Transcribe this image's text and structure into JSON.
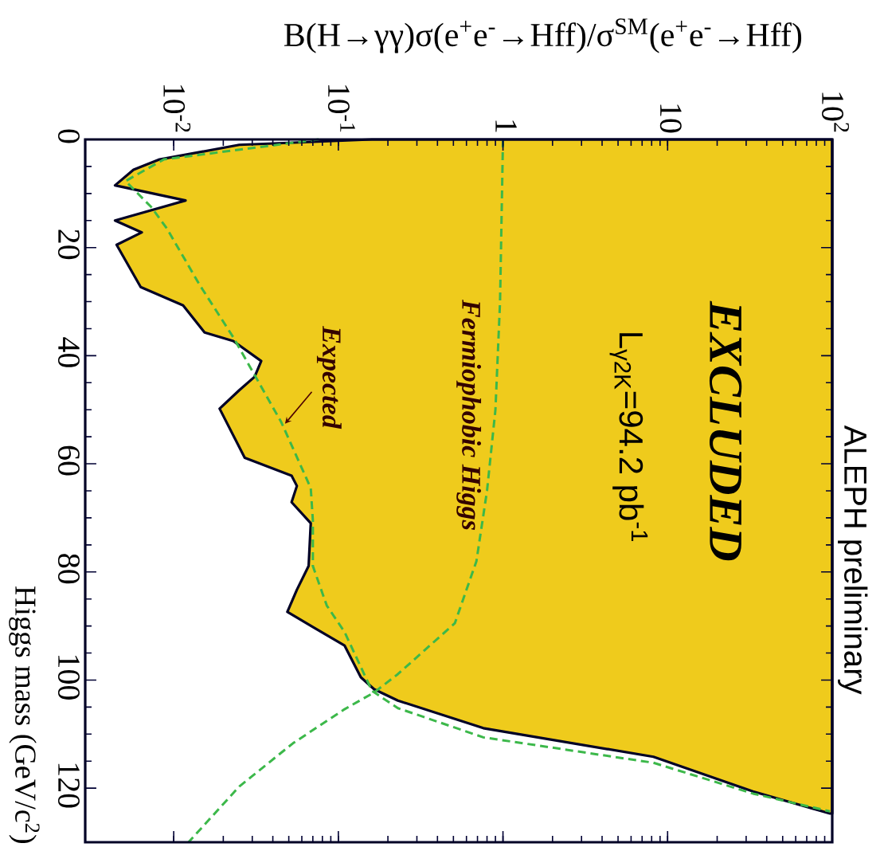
{
  "chart_data": {
    "type": "line",
    "xlabel": "B(H→γγ)σ(e$^{+}$e$^{-}$→Hff)/σ$^{SM}$(e$^{+}$e$^{-}$→Hff)",
    "ylabel": "Higgs mass (GeV/c$^{2}$)",
    "log": "x",
    "xlim": [
      0.0029,
      100
    ],
    "ylim": [
      130,
      0
    ],
    "yticks": [
      0,
      20,
      40,
      60,
      80,
      100,
      120
    ],
    "xticks": [
      {
        "value": 0.01,
        "label": "10$^{-2}$"
      },
      {
        "value": 0.1,
        "label": "10$^{-1}$"
      },
      1,
      10,
      {
        "value": 100,
        "label": "10$^{2}$"
      }
    ],
    "annotations": [
      "EXCLUDED",
      "L$_{γ2K}$=94.2 pb$^{-1}$",
      "ALEPH preliminary"
    ],
    "series": [
      {
        "type": "area",
        "color": "#efcb1c",
        "values": [
          0,
          1,
          3.7,
          5.6,
          8.5,
          11.3,
          15.0,
          17.2,
          19.5,
          27.3,
          30.7,
          35.7,
          37.3,
          41.0,
          43.9,
          46.4,
          49.8,
          58.9,
          62.2,
          64.1,
          67.1,
          71.0,
          78.9,
          83.3,
          87.4,
          90.2,
          93.6,
          99.5,
          101.7,
          103.8,
          108.9,
          114.2,
          120.6,
          124.7
        ],
        "x": [
          0.16,
          0.025,
          0.0082,
          0.0057,
          0.0044,
          0.0118,
          0.0044,
          0.0064,
          0.0045,
          0.0063,
          0.0114,
          0.0154,
          0.023,
          0.034,
          0.031,
          0.025,
          0.019,
          0.027,
          0.052,
          0.056,
          0.052,
          0.068,
          0.066,
          0.056,
          0.049,
          0.07,
          0.109,
          0.137,
          0.165,
          0.23,
          0.76,
          8.2,
          33,
          97
        ]
      },
      {
        "name": "Fermiophobic Higgs",
        "color": "#3cb84a",
        "line_style": "dashed",
        "values": [
          0,
          30,
          50,
          65,
          78,
          89.5,
          98.9,
          102.3,
          105.4,
          111.7,
          119.7,
          130
        ],
        "x": [
          1.0,
          0.96,
          0.9,
          0.8,
          0.69,
          0.51,
          0.23,
          0.165,
          0.109,
          0.053,
          0.025,
          0.0123
        ]
      },
      {
        "name": "Expected",
        "color": "#3cb84a",
        "line_style": "dashed",
        "values": [
          0,
          3.7,
          7.7,
          12.5,
          16.5,
          26.8,
          36.6,
          52.3,
          64.5,
          70.4,
          78.9,
          86.2,
          91.1,
          102.0,
          105.2,
          110.6,
          115.3,
          121.0,
          124.3
        ],
        "x": [
          0.076,
          0.0087,
          0.0051,
          0.0073,
          0.0091,
          0.0143,
          0.023,
          0.045,
          0.068,
          0.07,
          0.07,
          0.085,
          0.109,
          0.16,
          0.23,
          0.76,
          8.2,
          33,
          97
        ]
      }
    ]
  }
}
